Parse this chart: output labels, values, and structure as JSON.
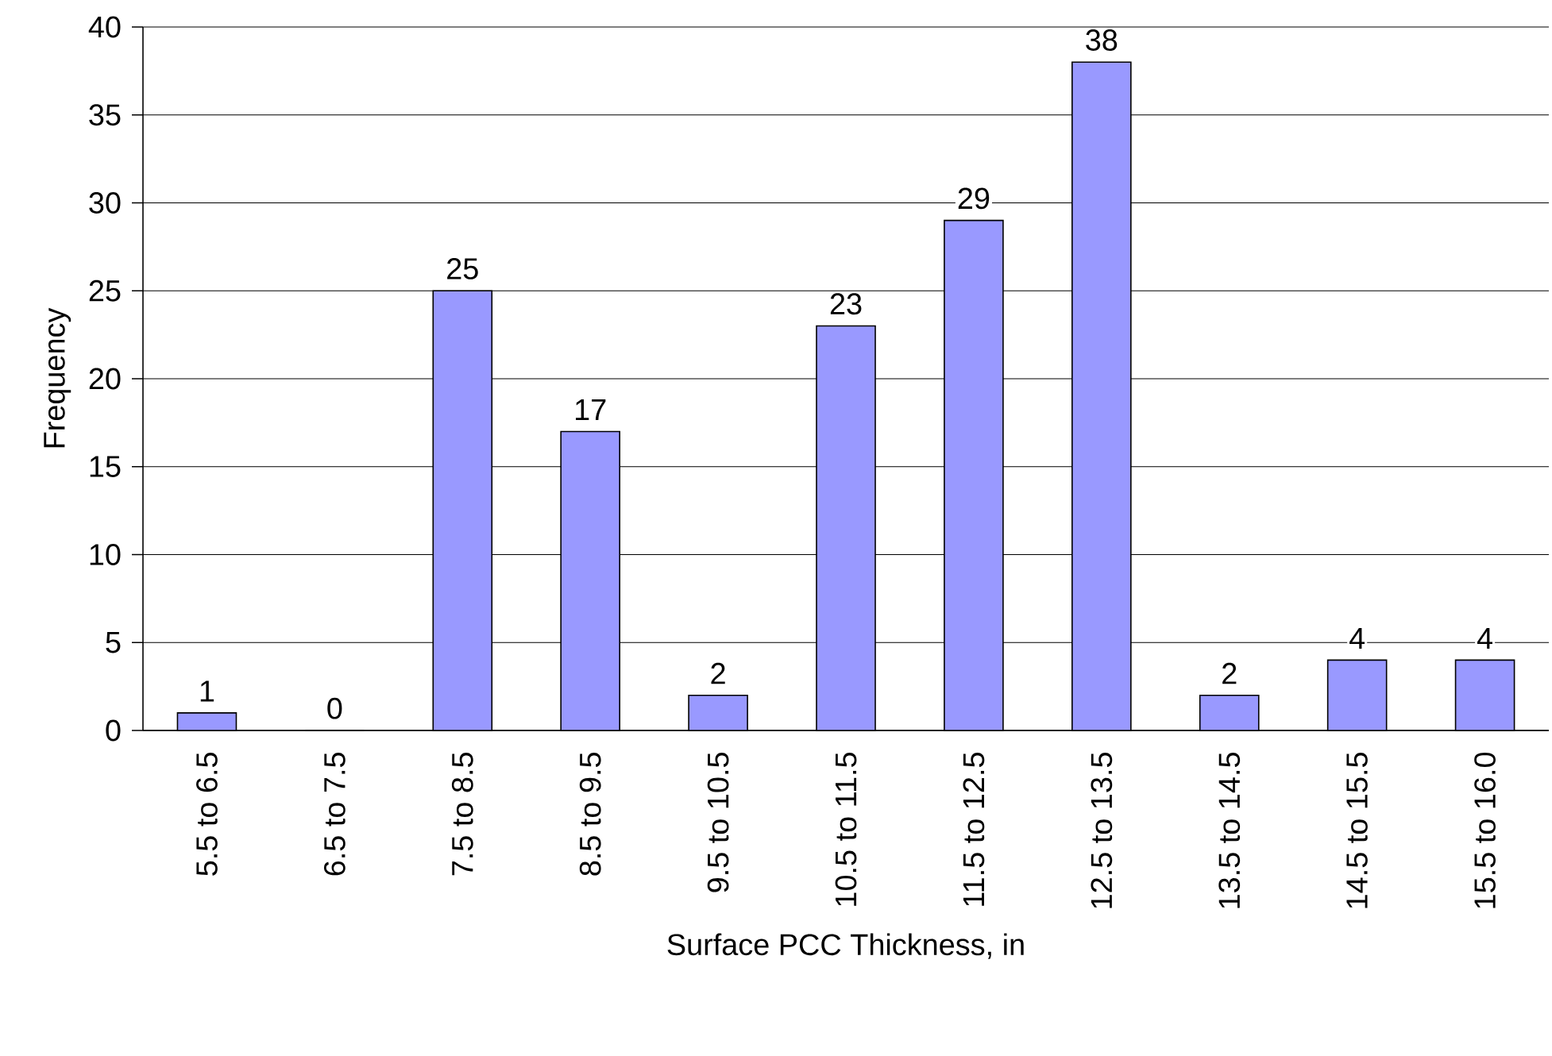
{
  "chart_data": {
    "type": "bar",
    "xlabel": "Surface PCC Thickness, in",
    "ylabel": "Frequency",
    "categories": [
      "5.5 to 6.5",
      "6.5 to 7.5",
      "7.5 to 8.5",
      "8.5 to 9.5",
      "9.5 to 10.5",
      "10.5 to 11.5",
      "11.5 to 12.5",
      "12.5 to 13.5",
      "13.5 to 14.5",
      "14.5 to 15.5",
      "15.5 to 16.0"
    ],
    "values": [
      1,
      0,
      25,
      17,
      2,
      23,
      29,
      38,
      2,
      4,
      4
    ],
    "color": "#9999ff",
    "ylim": [
      0,
      40
    ],
    "yticks": [
      0,
      5,
      10,
      15,
      20,
      25,
      30,
      35,
      40
    ],
    "grid": "y",
    "data_labels": true
  }
}
